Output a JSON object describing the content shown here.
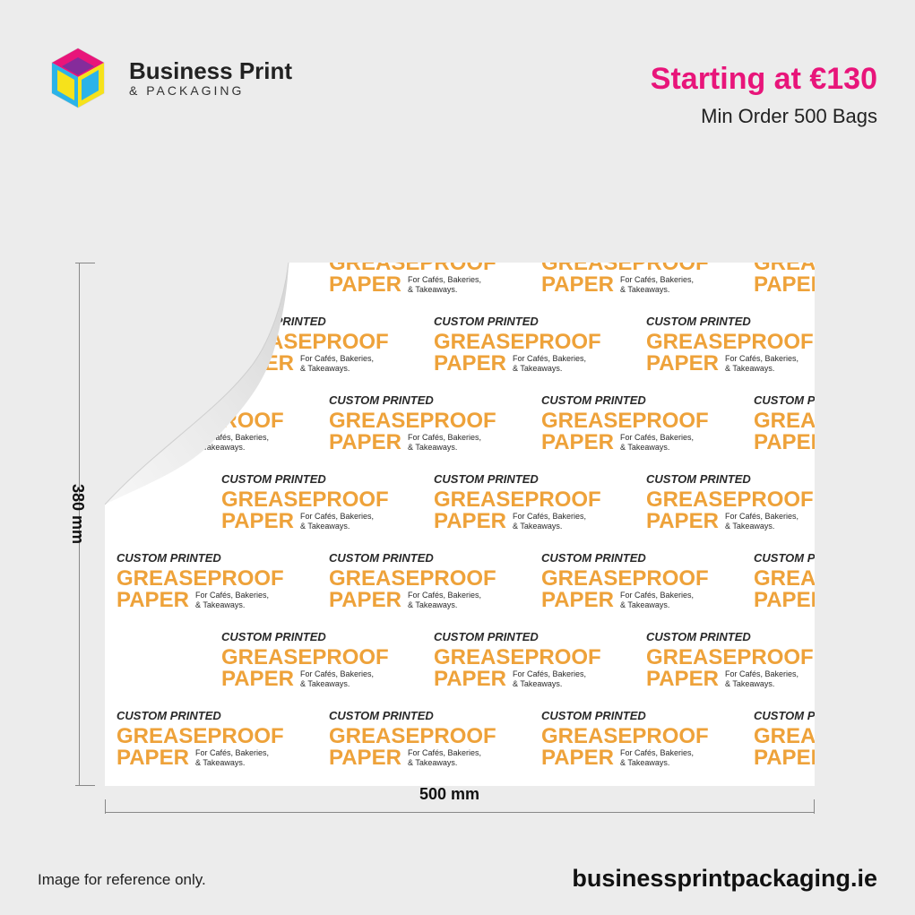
{
  "brand": {
    "name": "Business Print",
    "sub": "& PACKAGING",
    "logo_icon": "cube-logo-icon"
  },
  "pricing": {
    "headline": "Starting at €130",
    "min_order": "Min Order 500 Bags"
  },
  "dimensions": {
    "height": "380 mm",
    "width": "500 mm"
  },
  "pattern": {
    "line1": "CUSTOM PRINTED",
    "line2": "GREASEPROOF",
    "line3": "PAPER",
    "tag1": "For Cafés, Bakeries,",
    "tag2": "& Takeaways."
  },
  "colors": {
    "background": "#ececec",
    "accent": "#e8157a",
    "pattern_orange": "#eea23a",
    "pattern_dark": "#2a2a2a",
    "sheet": "#ffffff"
  },
  "footer": {
    "note": "Image for reference only.",
    "url": "businessprintpackaging.ie"
  }
}
